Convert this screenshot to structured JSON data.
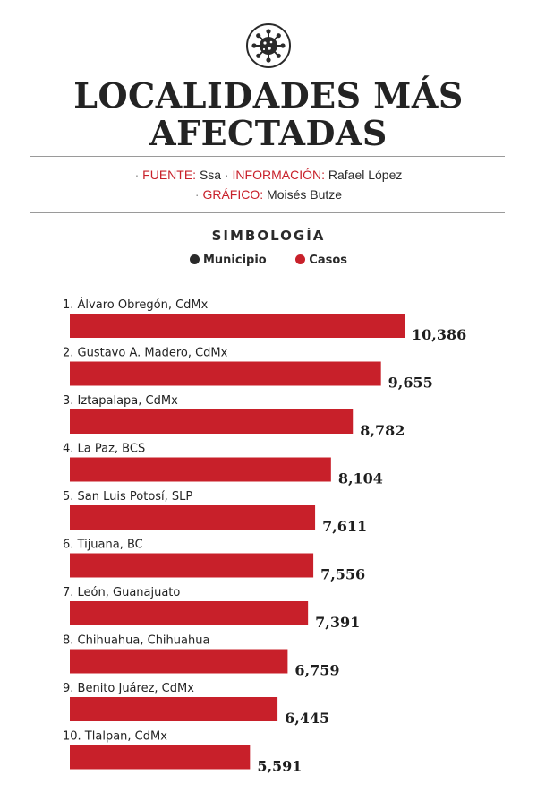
{
  "header": {
    "title_line1": "LOCALIDADES MÁS",
    "title_line2": "AFECTADAS",
    "logo_icon": "virus-icon"
  },
  "credits": {
    "bullet": "·",
    "fuente_label": "FUENTE:",
    "fuente_value": "Ssa",
    "informacion_label": "INFORMACIÓN:",
    "informacion_value": "Rafael López",
    "grafico_label": "GRÁFICO:",
    "grafico_value": "Moisés Butze"
  },
  "legend": {
    "title": "SIMBOLOGÍA",
    "items": [
      {
        "label": "Municipio",
        "color": "#2a2a2a"
      },
      {
        "label": "Casos",
        "color": "#c8202a"
      }
    ]
  },
  "colors": {
    "bar": "#c8202a",
    "accent": "#c8202a",
    "text": "#1e1e1e"
  },
  "chart_data": {
    "type": "bar",
    "orientation": "horizontal",
    "title": "LOCALIDADES MÁS AFECTADAS",
    "categories": [
      "1. Álvaro Obregón, CdMx",
      "2. Gustavo A. Madero, CdMx",
      "3. Iztapalapa, CdMx",
      "4. La Paz, BCS",
      "5. San Luis Potosí, SLP",
      "6. Tijuana, BC",
      "7. León, Guanajuato",
      "8. Chihuahua, Chihuahua",
      "9. Benito Juárez, CdMx",
      "10. Tlalpan, CdMx"
    ],
    "values": [
      10386,
      9655,
      8782,
      8104,
      7611,
      7556,
      7391,
      6759,
      6445,
      5591
    ],
    "value_labels": [
      "10,386",
      "9,655",
      "8,782",
      "8,104",
      "7,611",
      "7,556",
      "7,391",
      "6,759",
      "6,445",
      "5,591"
    ],
    "grid": false,
    "legend_position": "top-center"
  }
}
